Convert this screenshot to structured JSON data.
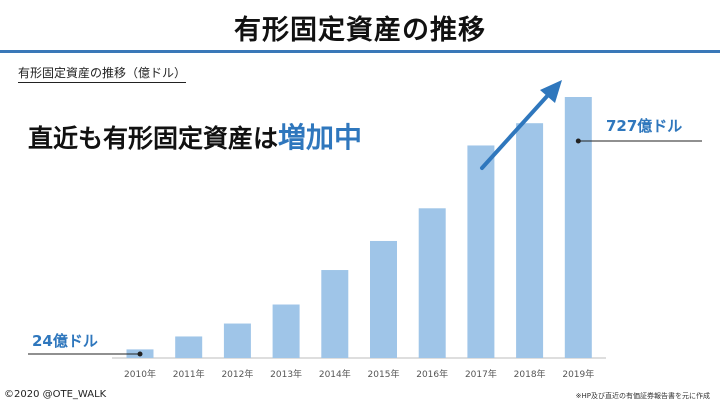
{
  "slide": {
    "title": "有形固定資産の推移",
    "headline_prefix": "直近も有形固定資産は",
    "headline_accent": "増加中",
    "footer_copyright": "©2020 @OTE_WALK",
    "footer_source": "※HP及び直近の有価証券報告書を元に作成"
  },
  "chart_data": {
    "type": "bar",
    "title": "有形固定資産の推移（億ドル）",
    "categories": [
      "2010年",
      "2011年",
      "2012年",
      "2013年",
      "2014年",
      "2015年",
      "2016年",
      "2017年",
      "2018年",
      "2019年"
    ],
    "values": [
      24,
      60,
      96,
      149,
      245,
      326,
      417,
      592,
      654,
      727
    ],
    "annotations": [
      {
        "category_index": 0,
        "label": "24億ドル"
      },
      {
        "category_index": 9,
        "label": "727億ドル"
      }
    ],
    "trend_arrow": true,
    "colors": {
      "bar": "#9fc5e8",
      "accent": "#2f77bd",
      "axis": "#bdbdbd"
    }
  }
}
